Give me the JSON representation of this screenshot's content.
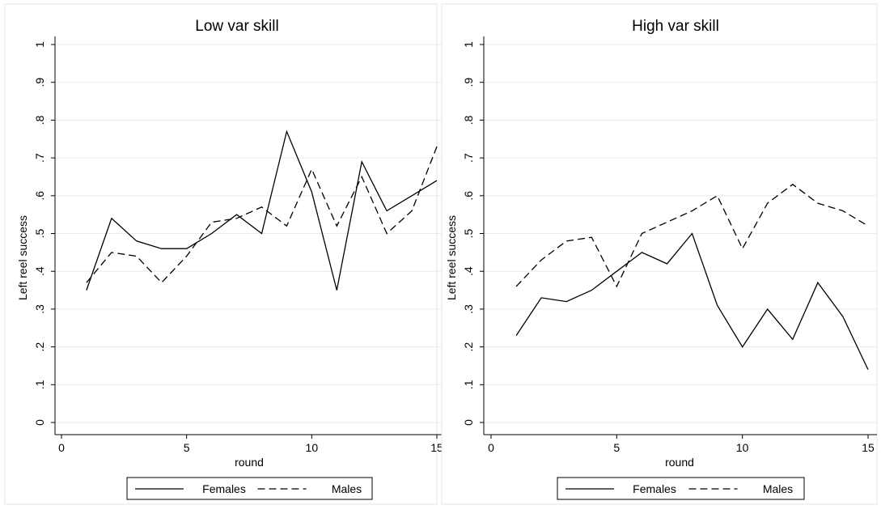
{
  "chart_data": [
    {
      "type": "line",
      "title": "Low var skill",
      "xlabel": "round",
      "ylabel": "Left reel success",
      "xlim": [
        0,
        15
      ],
      "ylim": [
        0,
        1
      ],
      "xticks": [
        0,
        5,
        10,
        15
      ],
      "xtick_labels": [
        "0",
        "5",
        "10",
        "15"
      ],
      "yticks": [
        0,
        0.1,
        0.2,
        0.3,
        0.4,
        0.5,
        0.6,
        0.7,
        0.8,
        0.9,
        1
      ],
      "ytick_labels": [
        "0",
        ".1",
        ".2",
        ".3",
        ".4",
        ".5",
        ".6",
        ".7",
        ".8",
        ".9",
        "1"
      ],
      "grid": true,
      "legend_position": "bottom",
      "x": [
        1,
        2,
        3,
        4,
        5,
        6,
        7,
        8,
        9,
        10,
        11,
        12,
        13,
        14,
        15
      ],
      "series": [
        {
          "name": "Females",
          "style": "solid",
          "values": [
            0.35,
            0.54,
            0.48,
            0.46,
            0.46,
            0.5,
            0.55,
            0.5,
            0.77,
            0.61,
            0.35,
            0.69,
            0.56,
            0.6,
            0.64
          ]
        },
        {
          "name": "Males",
          "style": "dashed",
          "values": [
            0.37,
            0.45,
            0.44,
            0.37,
            0.44,
            0.53,
            0.54,
            0.57,
            0.52,
            0.67,
            0.52,
            0.65,
            0.5,
            0.56,
            0.73
          ]
        }
      ]
    },
    {
      "type": "line",
      "title": "High var skill",
      "xlabel": "round",
      "ylabel": "Left reel success",
      "xlim": [
        0,
        15
      ],
      "ylim": [
        0,
        1
      ],
      "xticks": [
        0,
        5,
        10,
        15
      ],
      "xtick_labels": [
        "0",
        "5",
        "10",
        "15"
      ],
      "yticks": [
        0,
        0.1,
        0.2,
        0.3,
        0.4,
        0.5,
        0.6,
        0.7,
        0.8,
        0.9,
        1
      ],
      "ytick_labels": [
        "0",
        ".1",
        ".2",
        ".3",
        ".4",
        ".5",
        ".6",
        ".7",
        ".8",
        ".9",
        "1"
      ],
      "grid": true,
      "legend_position": "bottom",
      "x": [
        1,
        2,
        3,
        4,
        5,
        6,
        7,
        8,
        9,
        10,
        11,
        12,
        13,
        14,
        15
      ],
      "series": [
        {
          "name": "Females",
          "style": "solid",
          "values": [
            0.23,
            0.33,
            0.32,
            0.35,
            0.4,
            0.45,
            0.42,
            0.5,
            0.31,
            0.2,
            0.3,
            0.22,
            0.37,
            0.28,
            0.14
          ]
        },
        {
          "name": "Males",
          "style": "dashed",
          "values": [
            0.36,
            0.43,
            0.48,
            0.49,
            0.36,
            0.5,
            0.53,
            0.56,
            0.6,
            0.46,
            0.58,
            0.63,
            0.58,
            0.56,
            0.52
          ]
        }
      ]
    }
  ]
}
